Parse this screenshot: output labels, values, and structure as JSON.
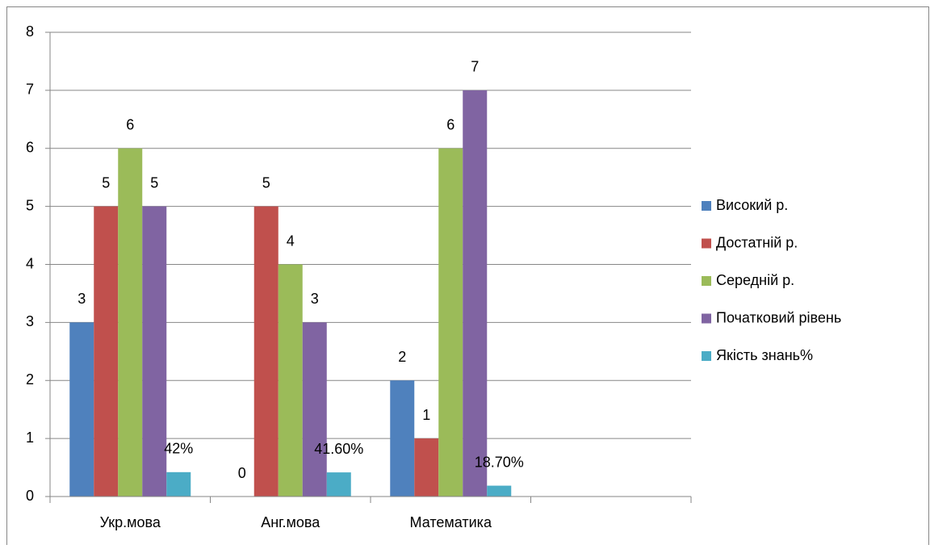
{
  "chart_data": {
    "type": "bar",
    "categories": [
      "Укр.мова",
      "Анг.мова",
      "Математика",
      null
    ],
    "series": [
      {
        "name": "Високий р.",
        "color": "#4f81bd",
        "values": [
          3,
          0,
          2,
          null
        ]
      },
      {
        "name": "Достатній р.",
        "color": "#c0504d",
        "values": [
          5,
          5,
          1,
          null
        ]
      },
      {
        "name": "Середній р.",
        "color": "#9bbb59",
        "values": [
          6,
          4,
          6,
          null
        ]
      },
      {
        "name": "Початковий рівень",
        "color": "#8064a2",
        "values": [
          5,
          3,
          7,
          null
        ]
      },
      {
        "name": "Якість знань%",
        "color": "#4bacc6",
        "values": [
          0.42,
          0.416,
          0.187,
          null
        ],
        "value_labels": [
          "42%",
          "41.60%",
          "18.70%",
          null
        ]
      }
    ],
    "ylim": [
      0,
      8
    ],
    "yticks": [
      0,
      1,
      2,
      3,
      4,
      5,
      6,
      7,
      8
    ],
    "grid": true,
    "legend": "right"
  }
}
